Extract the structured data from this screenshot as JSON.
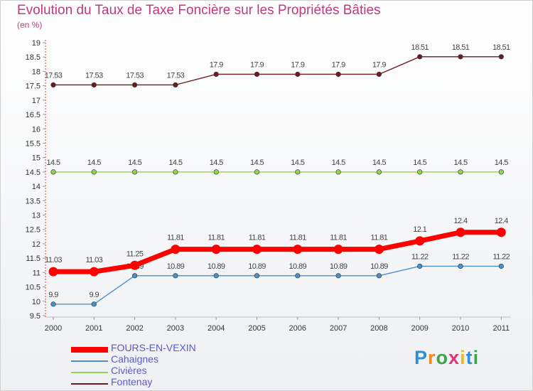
{
  "title": "Evolution du Taux de Taxe Foncière sur les Propriétés Bâties",
  "subtitle": "(en %)",
  "logo": {
    "text": "Proxiti",
    "letters": [
      {
        "ch": "P",
        "color": "#2f8fd0"
      },
      {
        "ch": "r",
        "color": "#f08a1f"
      },
      {
        "ch": "o",
        "color": "#3aa64a"
      },
      {
        "ch": "x",
        "color": "#e6327a"
      },
      {
        "ch": "i",
        "color": "#f0b81f"
      },
      {
        "ch": "t",
        "color": "#2f8fd0"
      },
      {
        "ch": "i",
        "color": "#3aa64a"
      }
    ]
  },
  "chart_data": {
    "type": "line",
    "title": "Evolution du Taux de Taxe Foncière sur les Propriétés Bâties",
    "ylabel": "(en %)",
    "xlabel": "",
    "ylim": [
      9.5,
      19
    ],
    "yticks": [
      "9.5",
      "10",
      "10.5",
      "11",
      "11.5",
      "12",
      "12.5",
      "13",
      "13.5",
      "14",
      "14.5",
      "15",
      "15.5",
      "16",
      "16.5",
      "17",
      "17.5",
      "18",
      "18.5",
      "19"
    ],
    "categories": [
      "2000",
      "2001",
      "2002",
      "2003",
      "2004",
      "2005",
      "2006",
      "2007",
      "2008",
      "2009",
      "2010",
      "2011"
    ],
    "series": [
      {
        "name": "Fontenay",
        "color": "#6b1d22",
        "values": [
          17.53,
          17.53,
          17.53,
          17.53,
          17.9,
          17.9,
          17.9,
          17.9,
          17.9,
          18.51,
          18.51,
          18.51
        ],
        "labels": [
          "17.53",
          "17.53",
          "17.53",
          "17.53",
          "17.9",
          "17.9",
          "17.9",
          "17.9",
          "17.9",
          "18.51",
          "18.51",
          "18.51"
        ]
      },
      {
        "name": "Civières",
        "color": "#8fd64a",
        "values": [
          14.5,
          14.5,
          14.5,
          14.5,
          14.5,
          14.5,
          14.5,
          14.5,
          14.5,
          14.5,
          14.5,
          14.5
        ],
        "labels": [
          "14.5",
          "14.5",
          "14.5",
          "14.5",
          "14.5",
          "14.5",
          "14.5",
          "14.5",
          "14.5",
          "14.5",
          "14.5",
          "14.5"
        ]
      },
      {
        "name": "Cahaignes",
        "color": "#4d8fc9",
        "values": [
          9.9,
          9.9,
          10.89,
          10.89,
          10.89,
          10.89,
          10.89,
          10.89,
          10.89,
          11.22,
          11.22,
          11.22
        ],
        "labels": [
          "9.9",
          "9.9",
          "10.89",
          "10.89",
          "10.89",
          "10.89",
          "10.89",
          "10.89",
          "10.89",
          "11.22",
          "11.22",
          "11.22"
        ]
      },
      {
        "name": "FOURS-EN-VEXIN",
        "color": "#ff0000",
        "thick": true,
        "values": [
          11.03,
          11.03,
          11.25,
          11.81,
          11.81,
          11.81,
          11.81,
          11.81,
          11.81,
          12.1,
          12.4,
          12.4
        ],
        "labels": [
          "11.03",
          "11.03",
          "11.25",
          "11.81",
          "11.81",
          "11.81",
          "11.81",
          "11.81",
          "11.81",
          "12.1",
          "12.4",
          "12.4"
        ]
      }
    ],
    "legend": [
      "FOURS-EN-VEXIN",
      "Cahaignes",
      "Civières",
      "Fontenay"
    ]
  }
}
